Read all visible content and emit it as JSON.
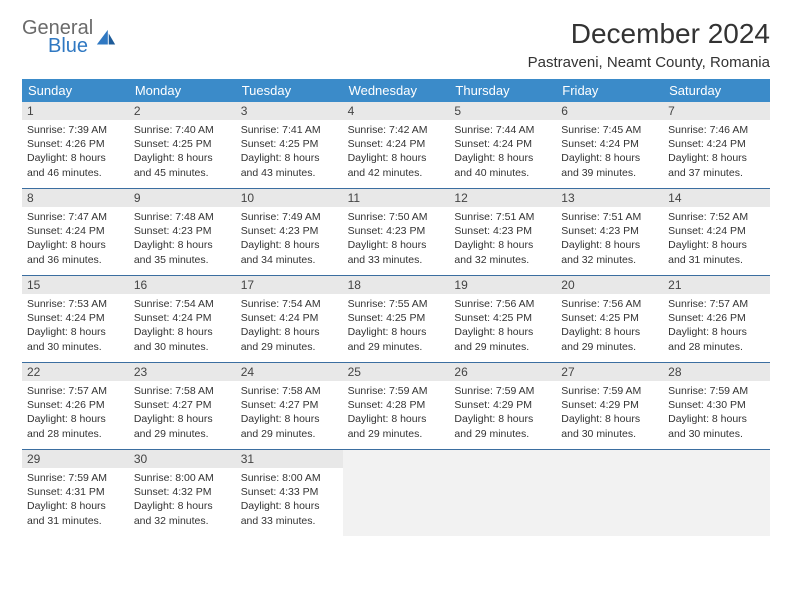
{
  "brand": {
    "line1": "General",
    "line2": "Blue"
  },
  "title": "December 2024",
  "location": "Pastraveni, Neamt County, Romania",
  "colors": {
    "header_bg": "#3b8bc9",
    "daynum_bg": "#e8e8e8",
    "rule": "#3b6ea0",
    "brand_gray": "#6a6a6a",
    "brand_blue": "#2f78c2",
    "empty_bg": "#f2f2f2"
  },
  "typography": {
    "title_fontsize": 28,
    "location_fontsize": 15,
    "dayhead_fontsize": 13,
    "daynum_fontsize": 12,
    "info_fontsize": 10.5
  },
  "day_names": [
    "Sunday",
    "Monday",
    "Tuesday",
    "Wednesday",
    "Thursday",
    "Friday",
    "Saturday"
  ],
  "weeks": [
    [
      {
        "n": "1",
        "sr": "7:39 AM",
        "ss": "4:26 PM",
        "dl": "8 hours and 46 minutes."
      },
      {
        "n": "2",
        "sr": "7:40 AM",
        "ss": "4:25 PM",
        "dl": "8 hours and 45 minutes."
      },
      {
        "n": "3",
        "sr": "7:41 AM",
        "ss": "4:25 PM",
        "dl": "8 hours and 43 minutes."
      },
      {
        "n": "4",
        "sr": "7:42 AM",
        "ss": "4:24 PM",
        "dl": "8 hours and 42 minutes."
      },
      {
        "n": "5",
        "sr": "7:44 AM",
        "ss": "4:24 PM",
        "dl": "8 hours and 40 minutes."
      },
      {
        "n": "6",
        "sr": "7:45 AM",
        "ss": "4:24 PM",
        "dl": "8 hours and 39 minutes."
      },
      {
        "n": "7",
        "sr": "7:46 AM",
        "ss": "4:24 PM",
        "dl": "8 hours and 37 minutes."
      }
    ],
    [
      {
        "n": "8",
        "sr": "7:47 AM",
        "ss": "4:24 PM",
        "dl": "8 hours and 36 minutes."
      },
      {
        "n": "9",
        "sr": "7:48 AM",
        "ss": "4:23 PM",
        "dl": "8 hours and 35 minutes."
      },
      {
        "n": "10",
        "sr": "7:49 AM",
        "ss": "4:23 PM",
        "dl": "8 hours and 34 minutes."
      },
      {
        "n": "11",
        "sr": "7:50 AM",
        "ss": "4:23 PM",
        "dl": "8 hours and 33 minutes."
      },
      {
        "n": "12",
        "sr": "7:51 AM",
        "ss": "4:23 PM",
        "dl": "8 hours and 32 minutes."
      },
      {
        "n": "13",
        "sr": "7:51 AM",
        "ss": "4:23 PM",
        "dl": "8 hours and 32 minutes."
      },
      {
        "n": "14",
        "sr": "7:52 AM",
        "ss": "4:24 PM",
        "dl": "8 hours and 31 minutes."
      }
    ],
    [
      {
        "n": "15",
        "sr": "7:53 AM",
        "ss": "4:24 PM",
        "dl": "8 hours and 30 minutes."
      },
      {
        "n": "16",
        "sr": "7:54 AM",
        "ss": "4:24 PM",
        "dl": "8 hours and 30 minutes."
      },
      {
        "n": "17",
        "sr": "7:54 AM",
        "ss": "4:24 PM",
        "dl": "8 hours and 29 minutes."
      },
      {
        "n": "18",
        "sr": "7:55 AM",
        "ss": "4:25 PM",
        "dl": "8 hours and 29 minutes."
      },
      {
        "n": "19",
        "sr": "7:56 AM",
        "ss": "4:25 PM",
        "dl": "8 hours and 29 minutes."
      },
      {
        "n": "20",
        "sr": "7:56 AM",
        "ss": "4:25 PM",
        "dl": "8 hours and 29 minutes."
      },
      {
        "n": "21",
        "sr": "7:57 AM",
        "ss": "4:26 PM",
        "dl": "8 hours and 28 minutes."
      }
    ],
    [
      {
        "n": "22",
        "sr": "7:57 AM",
        "ss": "4:26 PM",
        "dl": "8 hours and 28 minutes."
      },
      {
        "n": "23",
        "sr": "7:58 AM",
        "ss": "4:27 PM",
        "dl": "8 hours and 29 minutes."
      },
      {
        "n": "24",
        "sr": "7:58 AM",
        "ss": "4:27 PM",
        "dl": "8 hours and 29 minutes."
      },
      {
        "n": "25",
        "sr": "7:59 AM",
        "ss": "4:28 PM",
        "dl": "8 hours and 29 minutes."
      },
      {
        "n": "26",
        "sr": "7:59 AM",
        "ss": "4:29 PM",
        "dl": "8 hours and 29 minutes."
      },
      {
        "n": "27",
        "sr": "7:59 AM",
        "ss": "4:29 PM",
        "dl": "8 hours and 30 minutes."
      },
      {
        "n": "28",
        "sr": "7:59 AM",
        "ss": "4:30 PM",
        "dl": "8 hours and 30 minutes."
      }
    ],
    [
      {
        "n": "29",
        "sr": "7:59 AM",
        "ss": "4:31 PM",
        "dl": "8 hours and 31 minutes."
      },
      {
        "n": "30",
        "sr": "8:00 AM",
        "ss": "4:32 PM",
        "dl": "8 hours and 32 minutes."
      },
      {
        "n": "31",
        "sr": "8:00 AM",
        "ss": "4:33 PM",
        "dl": "8 hours and 33 minutes."
      },
      null,
      null,
      null,
      null
    ]
  ],
  "labels": {
    "sunrise": "Sunrise:",
    "sunset": "Sunset:",
    "daylight": "Daylight:"
  }
}
